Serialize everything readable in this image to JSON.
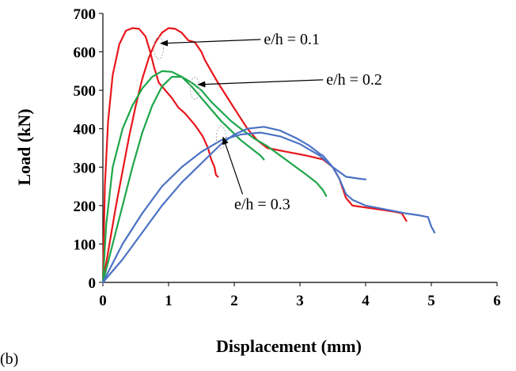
{
  "chart_data": {
    "type": "line",
    "panel_label": "(b)",
    "title": "",
    "xlabel": "Displacement (mm)",
    "ylabel": "Load (kN)",
    "xlim": [
      0,
      6
    ],
    "ylim": [
      0,
      700
    ],
    "x_ticks": [
      0,
      1,
      2,
      3,
      4,
      5,
      6
    ],
    "y_ticks": [
      0,
      100,
      200,
      300,
      400,
      500,
      600,
      700
    ],
    "grid": false,
    "legend": "none",
    "colors": {
      "e01": "#e8161b",
      "e02": "#1ea64a",
      "e03": "#4a72c4"
    },
    "series": [
      {
        "group": "e01",
        "color": "#e8161b",
        "points": [
          [
            0,
            0
          ],
          [
            0.03,
            250
          ],
          [
            0.08,
            420
          ],
          [
            0.15,
            540
          ],
          [
            0.25,
            620
          ],
          [
            0.35,
            655
          ],
          [
            0.45,
            662
          ],
          [
            0.55,
            660
          ],
          [
            0.65,
            640
          ],
          [
            0.72,
            600
          ],
          [
            0.78,
            560
          ],
          [
            0.85,
            520
          ],
          [
            0.95,
            500
          ],
          [
            1.05,
            480
          ],
          [
            1.15,
            455
          ],
          [
            1.25,
            440
          ],
          [
            1.4,
            410
          ],
          [
            1.52,
            380
          ],
          [
            1.6,
            350
          ],
          [
            1.65,
            320
          ],
          [
            1.7,
            300
          ],
          [
            1.72,
            280
          ],
          [
            1.75,
            275
          ]
        ]
      },
      {
        "group": "e01",
        "color": "#e8161b",
        "points": [
          [
            0,
            0
          ],
          [
            0.1,
            100
          ],
          [
            0.2,
            200
          ],
          [
            0.3,
            290
          ],
          [
            0.4,
            380
          ],
          [
            0.5,
            460
          ],
          [
            0.6,
            530
          ],
          [
            0.7,
            585
          ],
          [
            0.8,
            625
          ],
          [
            0.9,
            650
          ],
          [
            1.0,
            662
          ],
          [
            1.1,
            660
          ],
          [
            1.2,
            650
          ],
          [
            1.3,
            630
          ],
          [
            1.4,
            625
          ],
          [
            1.5,
            600
          ],
          [
            1.55,
            580
          ],
          [
            1.65,
            550
          ],
          [
            1.75,
            520
          ],
          [
            1.9,
            480
          ],
          [
            2.05,
            440
          ],
          [
            2.2,
            400
          ],
          [
            2.35,
            370
          ],
          [
            2.5,
            350
          ],
          [
            2.8,
            340
          ],
          [
            3.1,
            330
          ],
          [
            3.35,
            320
          ],
          [
            3.5,
            300
          ],
          [
            3.6,
            270
          ],
          [
            3.7,
            220
          ],
          [
            3.8,
            200
          ],
          [
            4.0,
            195
          ],
          [
            4.2,
            190
          ],
          [
            4.4,
            185
          ],
          [
            4.55,
            180
          ],
          [
            4.62,
            160
          ]
        ]
      },
      {
        "group": "e02",
        "color": "#1ea64a",
        "points": [
          [
            0,
            0
          ],
          [
            0.05,
            150
          ],
          [
            0.15,
            300
          ],
          [
            0.3,
            400
          ],
          [
            0.45,
            460
          ],
          [
            0.6,
            505
          ],
          [
            0.75,
            535
          ],
          [
            0.9,
            550
          ],
          [
            1.05,
            548
          ],
          [
            1.2,
            535
          ],
          [
            1.35,
            510
          ],
          [
            1.5,
            480
          ],
          [
            1.65,
            450
          ],
          [
            1.8,
            420
          ],
          [
            1.95,
            395
          ],
          [
            2.1,
            370
          ],
          [
            2.25,
            350
          ],
          [
            2.4,
            330
          ],
          [
            2.45,
            320
          ]
        ]
      },
      {
        "group": "e02",
        "color": "#1ea64a",
        "points": [
          [
            0,
            0
          ],
          [
            0.15,
            100
          ],
          [
            0.3,
            200
          ],
          [
            0.45,
            300
          ],
          [
            0.6,
            390
          ],
          [
            0.75,
            460
          ],
          [
            0.9,
            510
          ],
          [
            1.05,
            535
          ],
          [
            1.2,
            535
          ],
          [
            1.35,
            520
          ],
          [
            1.5,
            500
          ],
          [
            1.65,
            470
          ],
          [
            1.8,
            445
          ],
          [
            1.95,
            420
          ],
          [
            2.1,
            400
          ],
          [
            2.3,
            375
          ],
          [
            2.5,
            355
          ],
          [
            2.7,
            330
          ],
          [
            2.9,
            305
          ],
          [
            3.1,
            280
          ],
          [
            3.25,
            260
          ],
          [
            3.35,
            240
          ],
          [
            3.4,
            225
          ]
        ]
      },
      {
        "group": "e03",
        "color": "#4a72c4",
        "points": [
          [
            0,
            0
          ],
          [
            0.3,
            100
          ],
          [
            0.6,
            180
          ],
          [
            0.9,
            250
          ],
          [
            1.2,
            300
          ],
          [
            1.5,
            340
          ],
          [
            1.8,
            370
          ],
          [
            2.1,
            385
          ],
          [
            2.4,
            390
          ],
          [
            2.7,
            380
          ],
          [
            3.0,
            360
          ],
          [
            3.3,
            330
          ],
          [
            3.5,
            300
          ],
          [
            3.7,
            275
          ],
          [
            3.9,
            270
          ],
          [
            4.0,
            268
          ]
        ]
      },
      {
        "group": "e03",
        "color": "#4a72c4",
        "points": [
          [
            0,
            0
          ],
          [
            0.3,
            60
          ],
          [
            0.6,
            130
          ],
          [
            0.9,
            200
          ],
          [
            1.2,
            260
          ],
          [
            1.5,
            310
          ],
          [
            1.8,
            360
          ],
          [
            2.0,
            385
          ],
          [
            2.2,
            400
          ],
          [
            2.45,
            405
          ],
          [
            2.7,
            395
          ],
          [
            2.95,
            375
          ],
          [
            3.15,
            355
          ],
          [
            3.3,
            335
          ],
          [
            3.35,
            330
          ],
          [
            3.5,
            300
          ],
          [
            3.6,
            270
          ],
          [
            3.7,
            230
          ],
          [
            3.8,
            215
          ],
          [
            4.0,
            200
          ],
          [
            4.3,
            190
          ],
          [
            4.6,
            180
          ],
          [
            4.8,
            175
          ],
          [
            4.95,
            170
          ],
          [
            5.0,
            145
          ],
          [
            5.05,
            130
          ]
        ]
      }
    ],
    "annotations": [
      {
        "text": "e/h = 0.1",
        "x": 2.45,
        "y": 620,
        "arrow_to": [
          0.88,
          622
        ],
        "ellipse_at": [
          0.85,
          610
        ]
      },
      {
        "text": "e/h = 0.2",
        "x": 3.4,
        "y": 515,
        "arrow_to": [
          1.45,
          515
        ],
        "ellipse_at": [
          1.4,
          505
        ]
      },
      {
        "text": "e/h = 0.3",
        "x": 2.0,
        "y": 190,
        "arrow_to": [
          1.83,
          378
        ],
        "ellipse_at": [
          1.8,
          378
        ]
      }
    ]
  }
}
